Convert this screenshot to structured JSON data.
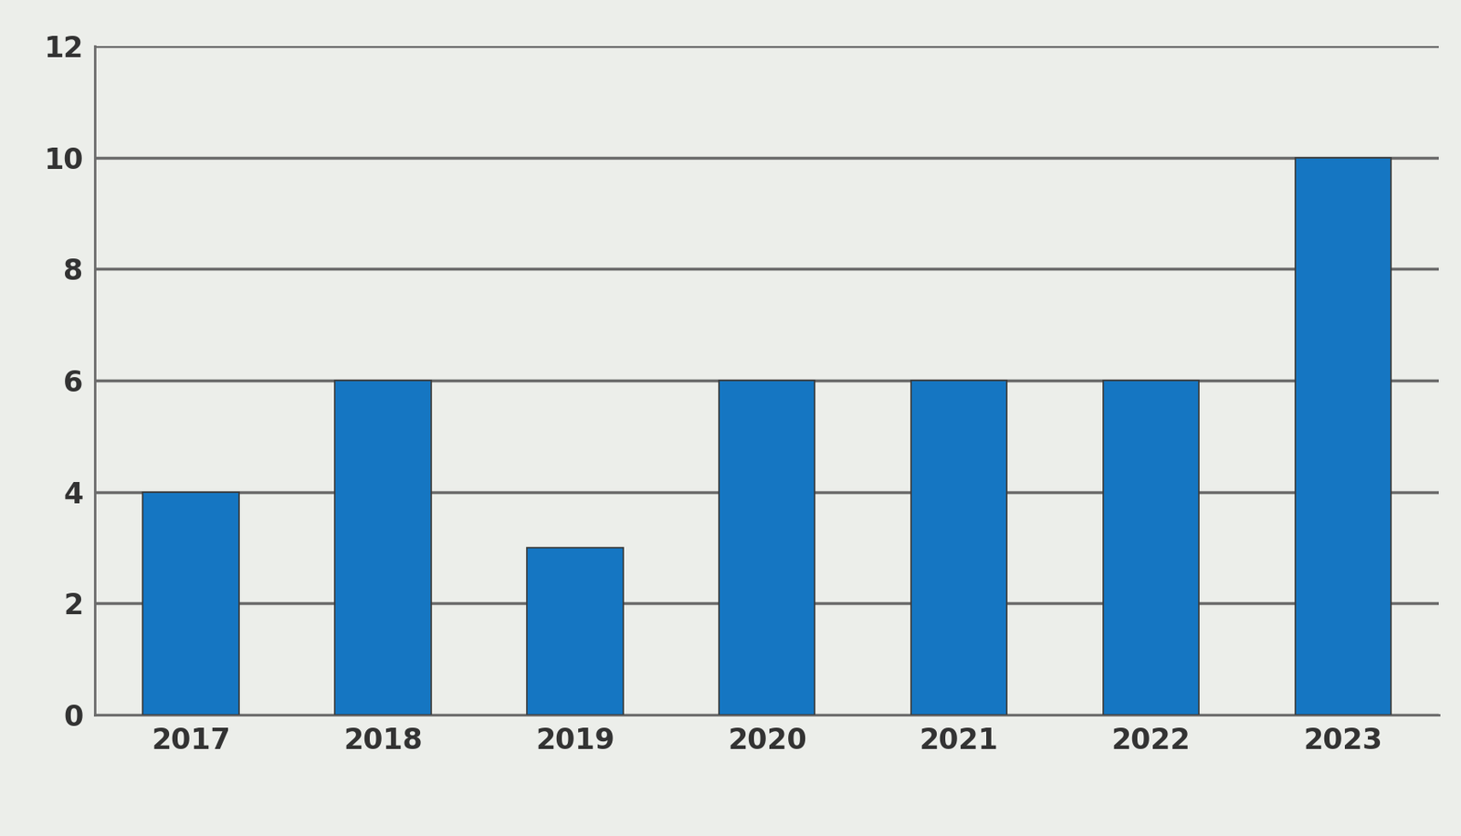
{
  "chart_data": {
    "type": "bar",
    "categories": [
      "2017",
      "2018",
      "2019",
      "2020",
      "2021",
      "2022",
      "2023"
    ],
    "values": [
      4,
      6,
      3,
      6,
      6,
      6,
      10
    ],
    "color": "#1576c2",
    "ylim": [
      0,
      12
    ],
    "yticks": [
      0,
      2,
      4,
      6,
      8,
      10,
      12
    ],
    "grid": true
  }
}
